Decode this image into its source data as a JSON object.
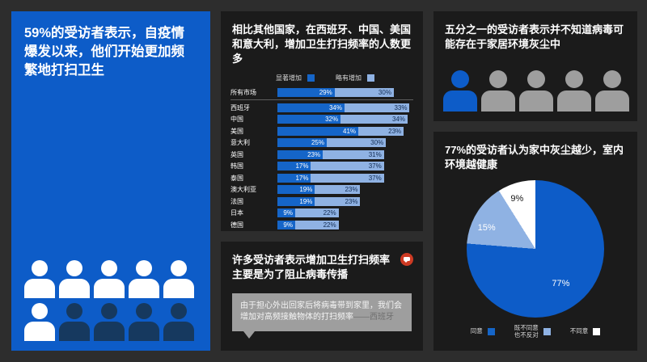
{
  "colors": {
    "background": "#2d2d2d",
    "panel_dark": "#1b1b1b",
    "brand_blue": "#0d5cc8",
    "bar_primary": "#1565c8",
    "bar_secondary": "#8fb2e3",
    "person_white": "#ffffff",
    "person_navy": "#16395f",
    "person_gray": "#9e9e9e",
    "quote_bubble_gray": "#9e9e9e",
    "badge_red": "#cd3a23"
  },
  "left_panel": {
    "title": "59%的受访者表示，自疫情爆发以来，他们开始更加频繁地打扫卫生",
    "people": {
      "total": 10,
      "highlighted": 6
    }
  },
  "middle_top_panel": {
    "title": "相比其他国家，在西班牙、中国、美国和意大利，增加卫生打扫频率的人数更多",
    "legend": [
      {
        "label": "显著增加",
        "color": "#1565c8"
      },
      {
        "label": "略有增加",
        "color": "#8fb2e3"
      }
    ],
    "chart_data": {
      "type": "bar",
      "orientation": "horizontal",
      "stacked": true,
      "categories": [
        "所有市场",
        "西班牙",
        "中国",
        "美国",
        "意大利",
        "英国",
        "韩国",
        "泰国",
        "澳大利亚",
        "法国",
        "日本",
        "德国"
      ],
      "series": [
        {
          "name": "显著增加",
          "values": [
            29,
            34,
            32,
            41,
            25,
            23,
            17,
            17,
            19,
            19,
            9,
            9
          ]
        },
        {
          "name": "略有增加",
          "values": [
            30,
            33,
            34,
            23,
            30,
            31,
            37,
            37,
            23,
            23,
            22,
            22
          ]
        }
      ],
      "value_suffix": "%",
      "xlim": [
        0,
        68
      ],
      "grid": false,
      "legend_position": "top"
    }
  },
  "middle_bottom_panel": {
    "title": "许多受访者表示增加卫生打扫频率主要是为了阻止病毒传播",
    "quote": "由于担心外出回家后将病毒带到家里，我们会增加对高频接触物体的打扫频率",
    "attribution": "——西班牙"
  },
  "right_top_panel": {
    "title": "五分之一的受访者表示并不知道病毒可能存在于家居环境灰尘中",
    "people": {
      "total": 5,
      "highlighted": 1
    }
  },
  "right_bottom_panel": {
    "title": "77%的受访者认为家中灰尘越少，室内环境越健康",
    "chart_data": {
      "type": "pie",
      "labels": [
        "同意",
        "既不同意也不反对",
        "不同意"
      ],
      "values": [
        77,
        15,
        9
      ],
      "colors": [
        "#0d5cc8",
        "#8fb2e3",
        "#ffffff"
      ],
      "start_angle_deg": 0,
      "direction": "clockwise"
    },
    "legend": [
      {
        "label": "同意",
        "color": "#1565c8"
      },
      {
        "label": "既不同意\n也不反对",
        "color": "#8fb2e3"
      },
      {
        "label": "不同意",
        "color": "#ffffff"
      }
    ]
  }
}
